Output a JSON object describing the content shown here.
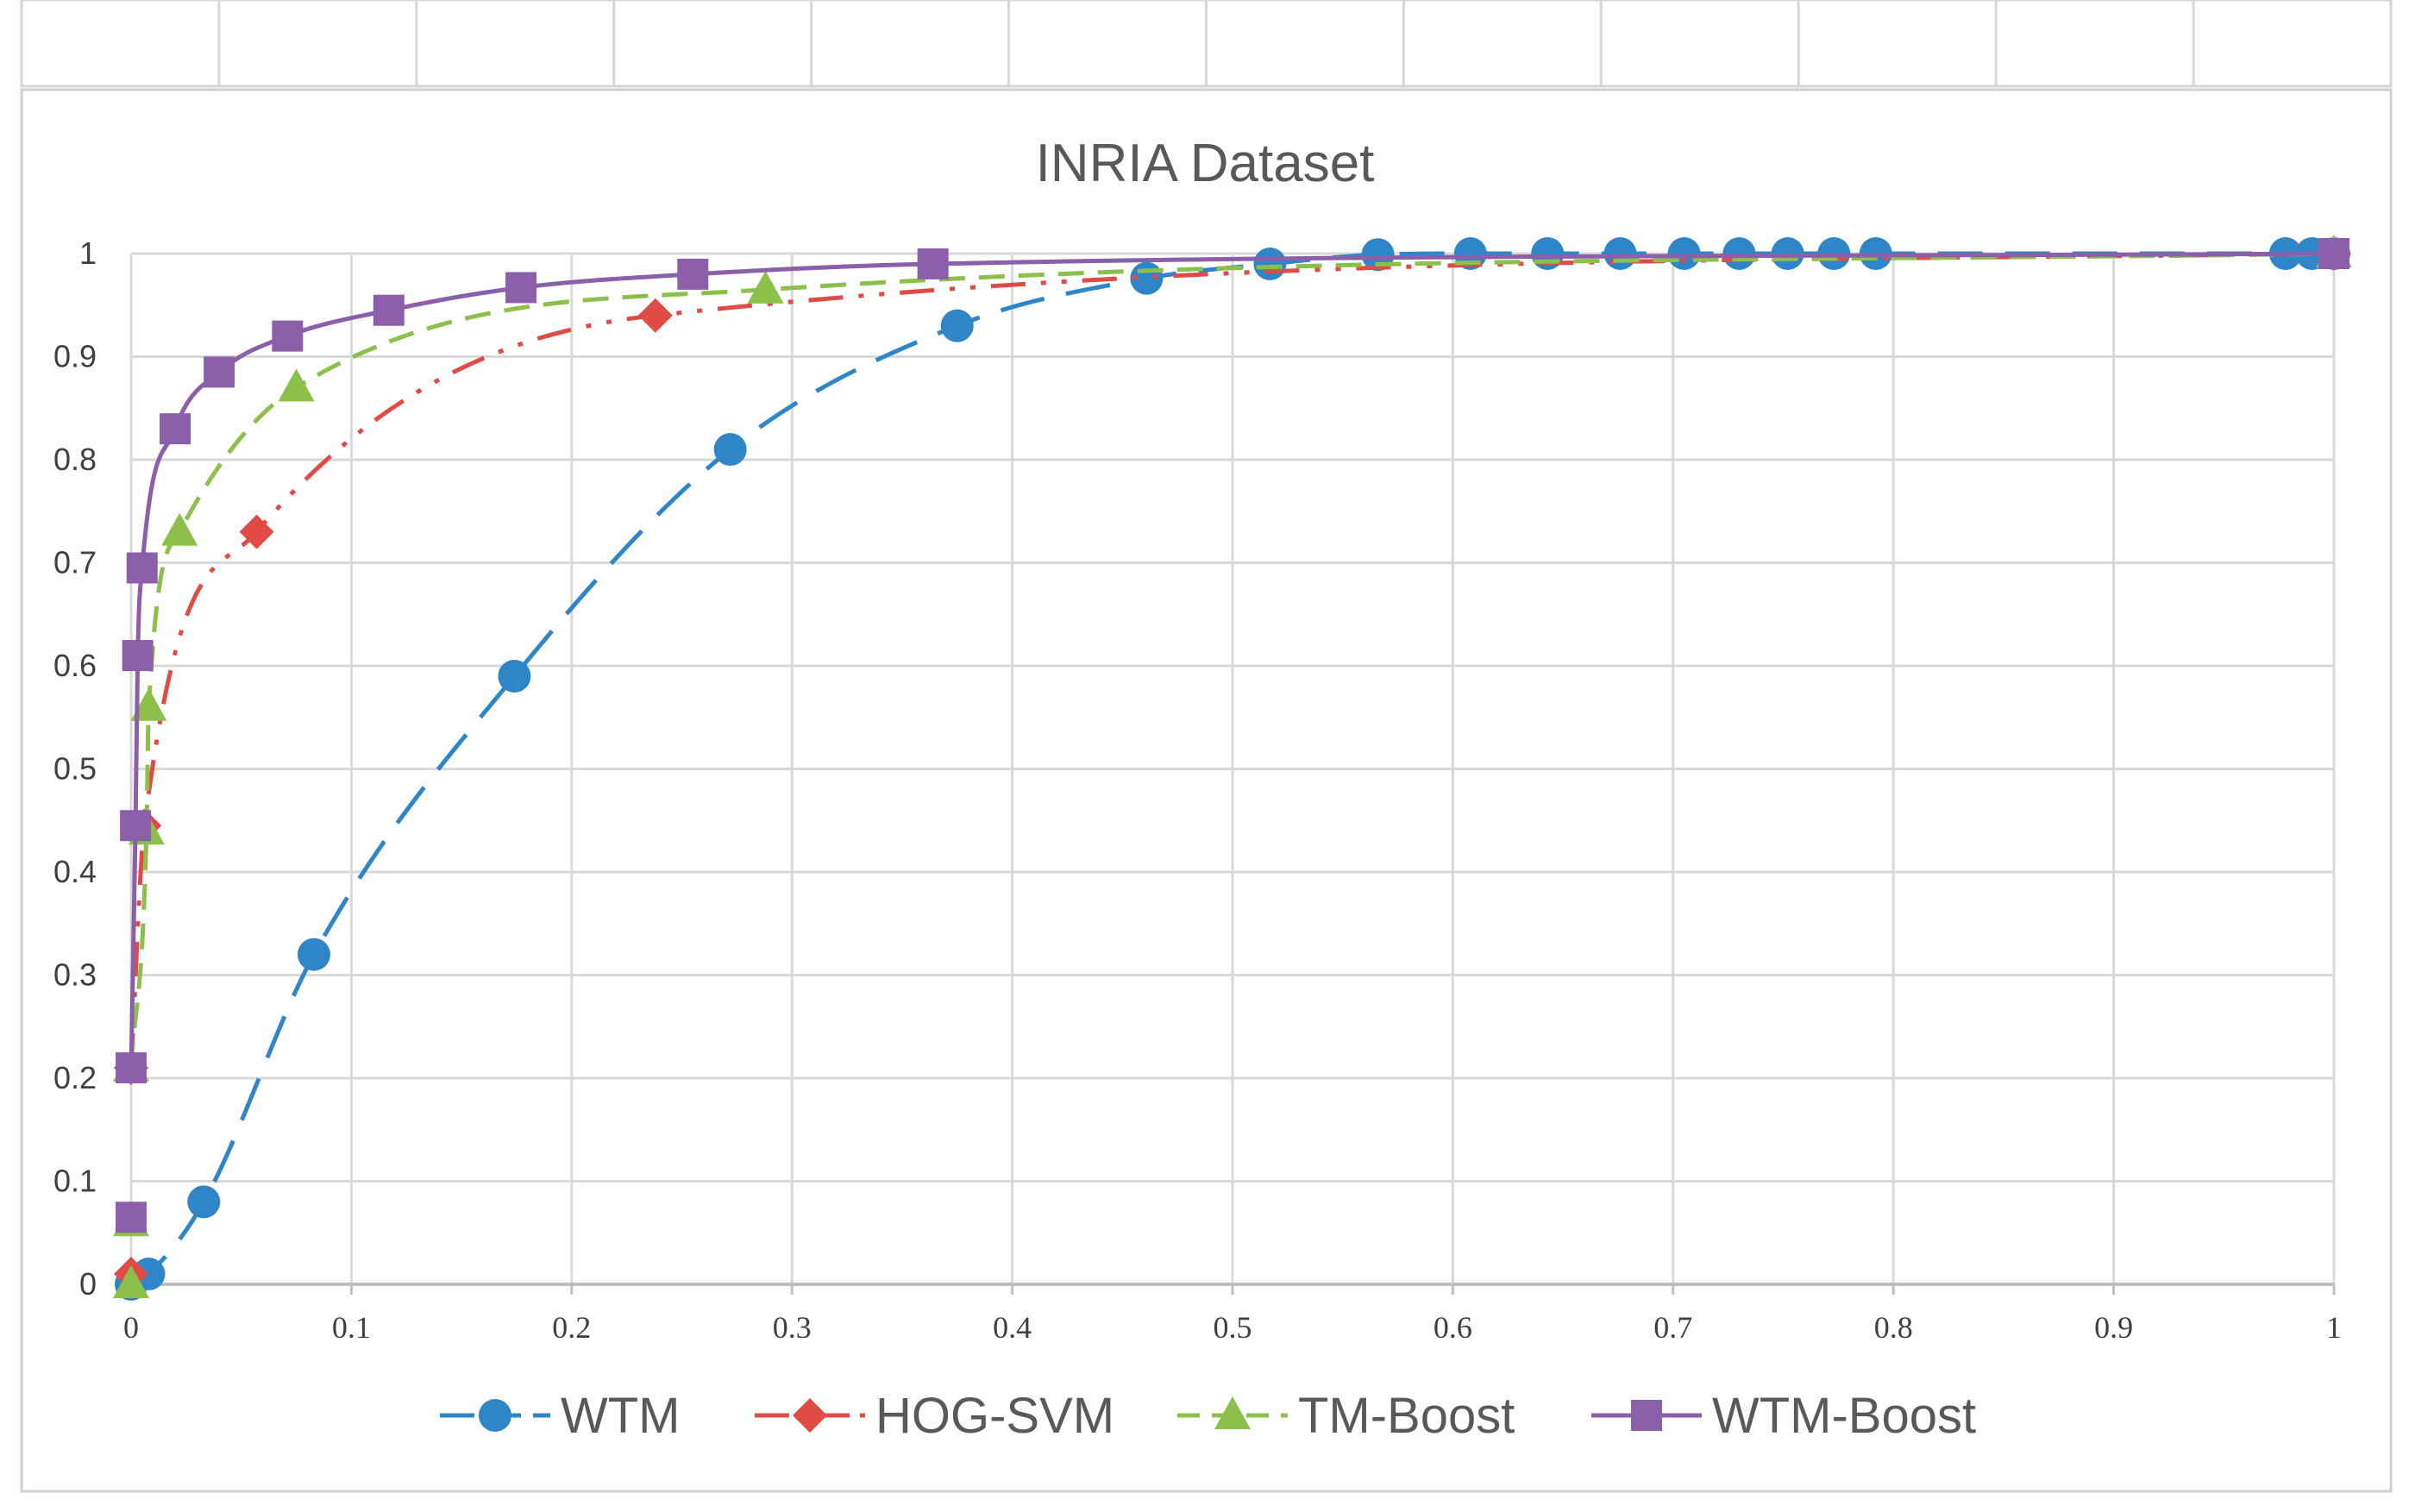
{
  "chart_data": {
    "type": "line",
    "title": "INRIA Dataset",
    "xlabel": "",
    "ylabel": "",
    "xlim": [
      0,
      1
    ],
    "ylim": [
      0,
      1
    ],
    "x_ticks": [
      "0",
      "0.1",
      "0.2",
      "0.3",
      "0.4",
      "0.5",
      "0.6",
      "0.7",
      "0.8",
      "0.9",
      "1"
    ],
    "y_ticks": [
      "0",
      "0.1",
      "0.2",
      "0.3",
      "0.4",
      "0.5",
      "0.6",
      "0.7",
      "0.8",
      "0.9",
      "1"
    ],
    "grid": true,
    "legend_position": "bottom",
    "series": [
      {
        "name": "WTM",
        "color": "#2e86c9",
        "marker": "circle",
        "dash": "long-dash",
        "x": [
          0.0,
          0.008,
          0.033,
          0.083,
          0.174,
          0.272,
          0.375,
          0.461,
          0.517,
          0.566,
          0.608,
          0.643,
          0.676,
          0.705,
          0.73,
          0.752,
          0.773,
          0.792,
          0.978,
          0.99,
          1.0
        ],
        "y": [
          0.0,
          0.01,
          0.08,
          0.32,
          0.59,
          0.81,
          0.93,
          0.976,
          0.99,
          0.999,
          1.0,
          1.0,
          1.0,
          1.0,
          1.0,
          1.0,
          1.0,
          1.0,
          1.0,
          1.0,
          1.0
        ]
      },
      {
        "name": "HOG-SVM",
        "color": "#e04b45",
        "marker": "diamond",
        "dash": "dash-dot-dot",
        "x": [
          0.0,
          0.0,
          0.006,
          0.057,
          0.238,
          1.0
        ],
        "y": [
          0.01,
          0.21,
          0.445,
          0.73,
          0.94,
          1.0
        ]
      },
      {
        "name": "TM-Boost",
        "color": "#8dc04a",
        "marker": "triangle",
        "dash": "dash",
        "x": [
          0.0,
          0.0,
          0.0,
          0.007,
          0.008,
          0.022,
          0.075,
          0.288,
          1.0
        ],
        "y": [
          0.0,
          0.06,
          0.21,
          0.44,
          0.56,
          0.73,
          0.87,
          0.965,
          1.0
        ]
      },
      {
        "name": "WTM-Boost",
        "color": "#8b5faa",
        "marker": "square",
        "dash": "solid",
        "x": [
          0.0,
          0.0,
          0.002,
          0.003,
          0.005,
          0.02,
          0.04,
          0.071,
          0.117,
          0.177,
          0.255,
          0.364,
          1.0
        ],
        "y": [
          0.065,
          0.21,
          0.445,
          0.61,
          0.695,
          0.83,
          0.885,
          0.92,
          0.945,
          0.967,
          0.98,
          0.99,
          1.0
        ]
      }
    ]
  }
}
